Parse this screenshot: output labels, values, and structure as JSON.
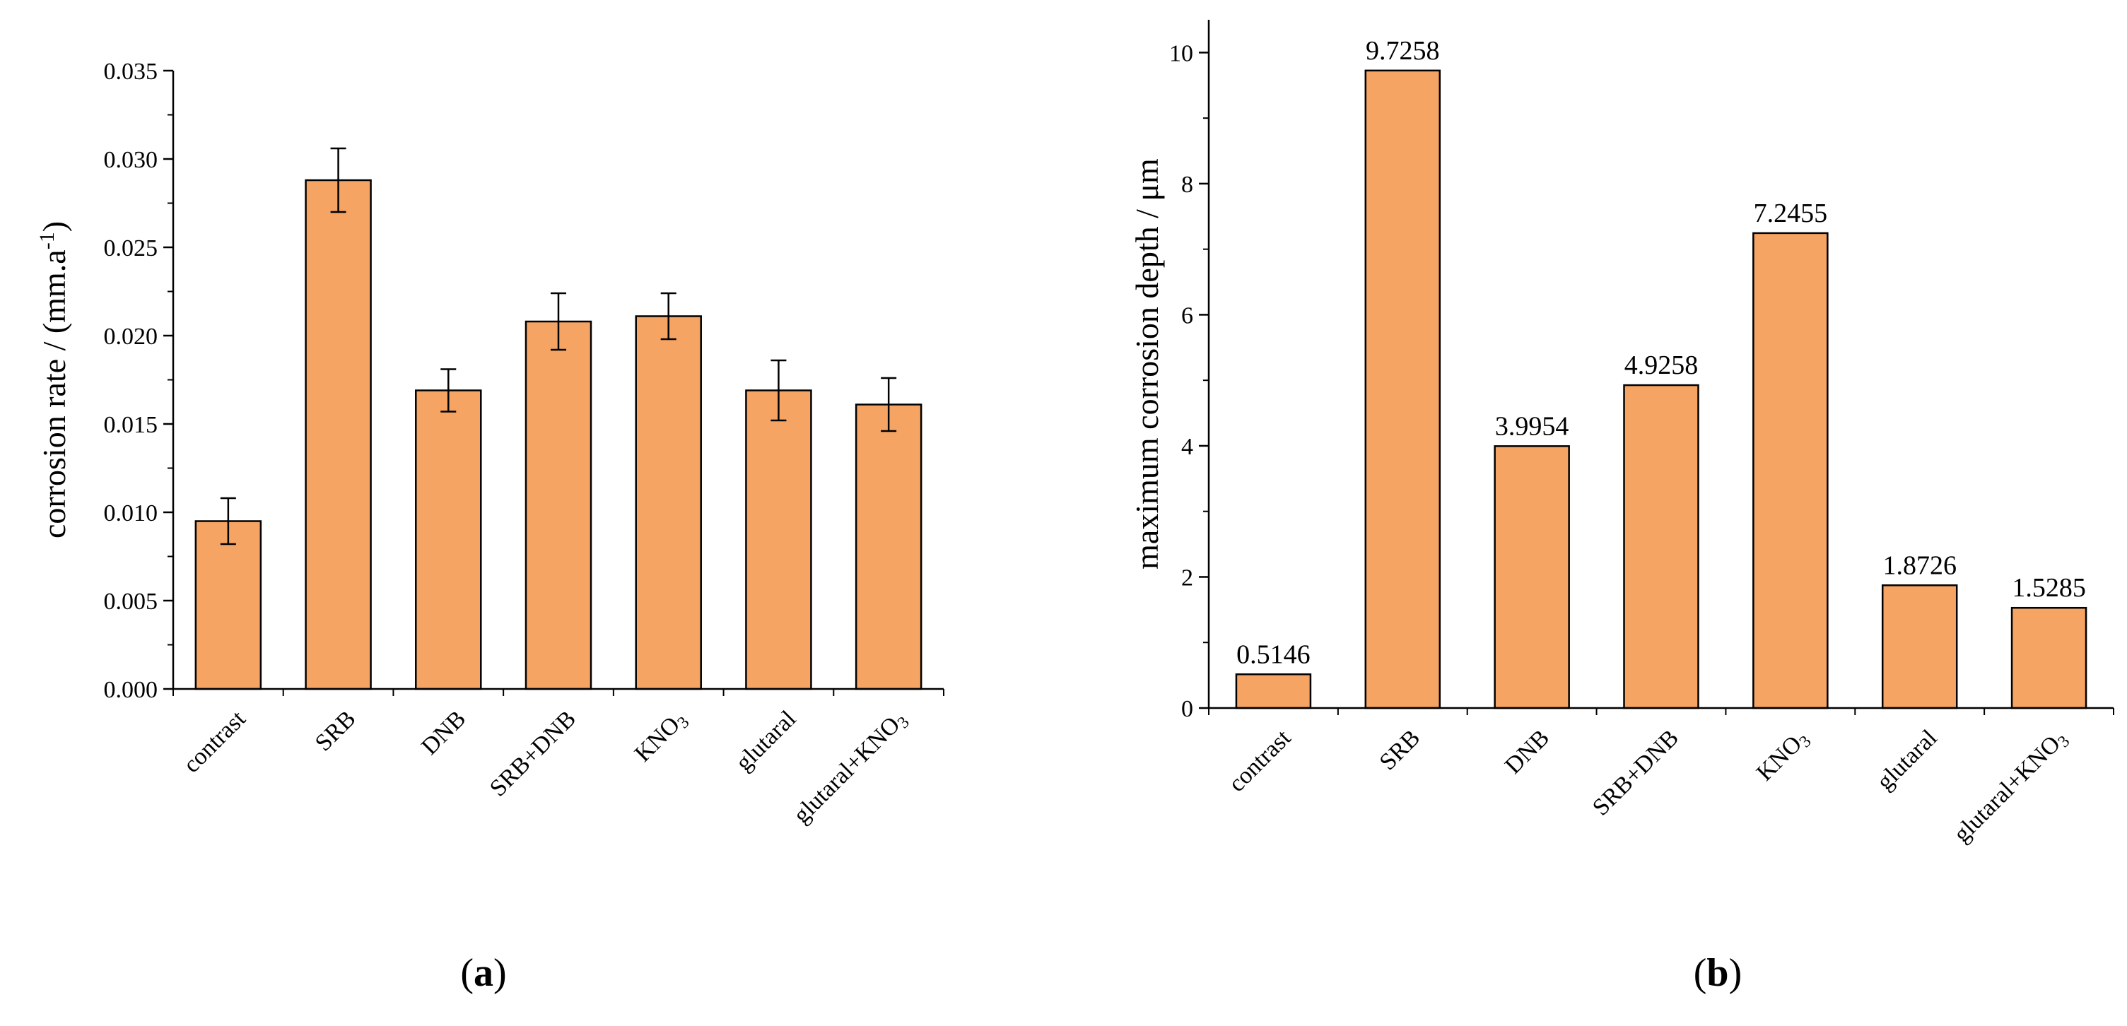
{
  "colors": {
    "bar_fill": "#F5A463",
    "bar_stroke": "#000000",
    "axis": "#000000"
  },
  "chart_data": [
    {
      "type": "bar",
      "panel_label": "(a)",
      "title": "",
      "xlabel": "",
      "ylabel": "corrosion rate / (mm.a-1)",
      "ylabel_parts": {
        "main": "corrosion rate / (mm.a",
        "sup": "-1",
        "close": ")"
      },
      "categories": [
        "contrast",
        "SRB",
        "DNB",
        "SRB+DNB",
        "KNO3",
        "glutaral",
        "glutaral+KNO3"
      ],
      "category_labels": [
        {
          "main": "contrast",
          "sub": ""
        },
        {
          "main": "SRB",
          "sub": ""
        },
        {
          "main": "DNB",
          "sub": ""
        },
        {
          "main": "SRB+DNB",
          "sub": ""
        },
        {
          "main": "KNO",
          "sub": "3"
        },
        {
          "main": "glutaral",
          "sub": ""
        },
        {
          "main": "glutaral+KNO",
          "sub": "3"
        }
      ],
      "values": [
        0.0095,
        0.0288,
        0.0169,
        0.0208,
        0.0211,
        0.0169,
        0.0161
      ],
      "errors": [
        0.0013,
        0.0018,
        0.0012,
        0.0016,
        0.0013,
        0.0017,
        0.0015
      ],
      "ylim": [
        0,
        0.035
      ],
      "yticks": [
        0.0,
        0.005,
        0.01,
        0.015,
        0.02,
        0.025,
        0.03,
        0.035
      ],
      "ytick_labels": [
        "0.000",
        "0.005",
        "0.010",
        "0.015",
        "0.020",
        "0.025",
        "0.030",
        "0.035"
      ]
    },
    {
      "type": "bar",
      "panel_label": "(b)",
      "title": "",
      "xlabel": "",
      "ylabel": "maximum corrosion depth / μm",
      "categories": [
        "contrast",
        "SRB",
        "DNB",
        "SRB+DNB",
        "KNO3",
        "glutaral",
        "glutaral+KNO3"
      ],
      "category_labels": [
        {
          "main": "contrast",
          "sub": ""
        },
        {
          "main": "SRB",
          "sub": ""
        },
        {
          "main": "DNB",
          "sub": ""
        },
        {
          "main": "SRB+DNB",
          "sub": ""
        },
        {
          "main": "KNO",
          "sub": "3"
        },
        {
          "main": "glutaral",
          "sub": ""
        },
        {
          "main": "glutaral+KNO",
          "sub": "3"
        }
      ],
      "values": [
        0.5146,
        9.7258,
        3.9954,
        4.9258,
        7.2455,
        1.8726,
        1.5285
      ],
      "value_labels": [
        "0.5146",
        "9.7258",
        "3.9954",
        "4.9258",
        "7.2455",
        "1.8726",
        "1.5285"
      ],
      "ylim": [
        0,
        10.5
      ],
      "yticks": [
        0,
        2,
        4,
        6,
        8,
        10
      ],
      "ytick_labels": [
        "0",
        "2",
        "4",
        "6",
        "8",
        "10"
      ]
    }
  ]
}
